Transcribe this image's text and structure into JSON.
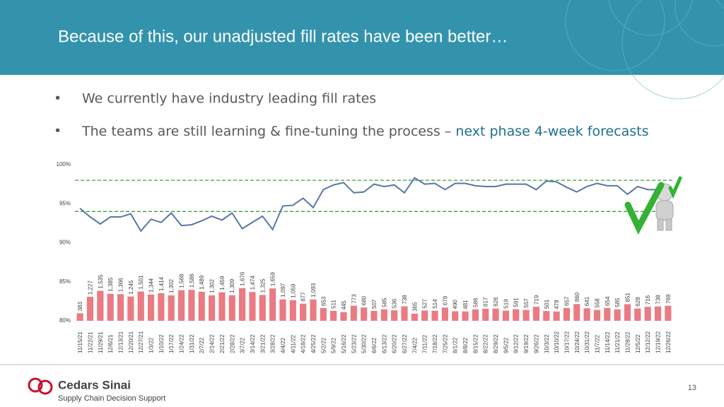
{
  "header": {
    "title": "Because of this, our unadjusted fill rates have been better…"
  },
  "bullets": [
    {
      "text": "We currently have industry leading fill rates"
    },
    {
      "text": "The teams are still learning & fine-tuning the process –",
      "highlight": "next phase 4-week forecasts"
    }
  ],
  "footer": {
    "logo": "Cedars Sinai",
    "department": "Supply Chain Decision Support",
    "page_number": "13"
  },
  "chart_data": {
    "type": "combo",
    "categories": [
      "11/15/21",
      "11/22/21",
      "11/29/21",
      "12/6/21",
      "12/13/21",
      "12/20/21",
      "12/27/21",
      "1/3/22",
      "1/10/22",
      "1/17/22",
      "1/24/22",
      "1/31/22",
      "2/7/22",
      "2/14/22",
      "2/21/22",
      "2/28/22",
      "3/7/22",
      "3/14/22",
      "3/21/22",
      "3/28/22",
      "4/4/22",
      "4/11/22",
      "4/18/22",
      "4/25/22",
      "5/2/22",
      "5/9/22",
      "5/16/22",
      "5/23/22",
      "5/30/22",
      "6/6/22",
      "6/13/22",
      "6/20/22",
      "6/27/22",
      "7/4/22",
      "7/11/22",
      "7/18/22",
      "7/25/22",
      "8/1/22",
      "8/8/22",
      "8/15/22",
      "8/22/22",
      "8/29/22",
      "9/5/22",
      "9/12/22",
      "9/19/22",
      "9/26/22",
      "10/3/22",
      "10/10/22",
      "10/17/22",
      "10/24/22",
      "10/31/22",
      "11/7/22",
      "11/14/22",
      "11/21/22",
      "11/28/22",
      "12/5/22",
      "12/12/22",
      "12/19/22",
      "12/26/22"
    ],
    "series": [
      {
        "type": "bar",
        "axis": "y2",
        "color": "#ea7b83",
        "values": [
          383,
          1227,
          1535,
          1385,
          1366,
          1245,
          1501,
          1344,
          1414,
          1302,
          1568,
          1586,
          1489,
          1302,
          1459,
          1309,
          1676,
          1474,
          1325,
          1659,
          1097,
          1059,
          877,
          1093,
          653,
          511,
          445,
          773,
          680,
          507,
          585,
          536,
          738,
          365,
          527,
          514,
          679,
          490,
          481,
          586,
          617,
          626,
          519,
          591,
          557,
          719,
          501,
          478,
          657,
          860,
          641,
          558,
          654,
          585,
          851,
          628,
          716,
          738,
          769
        ],
        "value_labels": [
          "383",
          "1,227",
          "1,535",
          "1,385",
          "1,366",
          "1,245",
          "1,501",
          "1,344",
          "1,414",
          "1,302",
          "1,568",
          "1,586",
          "1,489",
          "1,302",
          "1,459",
          "1,309",
          "1,676",
          "1,474",
          "1,325",
          "1,659",
          "1,097",
          "1,059",
          "877",
          "1,093",
          "653",
          "511",
          "445",
          "773",
          "680",
          "507",
          "585",
          "536",
          "738",
          "365",
          "527",
          "514",
          "679",
          "490",
          "481",
          "586",
          "617",
          "626",
          "519",
          "591",
          "557",
          "719",
          "501",
          "478",
          "657",
          "860",
          "641",
          "558",
          "654",
          "585",
          "851",
          "628",
          "716",
          "738",
          "769"
        ]
      },
      {
        "type": "line",
        "color": "#5677a8",
        "values": [
          94.4,
          93.3,
          92.4,
          93.3,
          93.3,
          93.7,
          91.5,
          93.0,
          92.6,
          93.8,
          92.2,
          92.3,
          92.8,
          93.4,
          92.9,
          93.8,
          91.8,
          92.6,
          93.4,
          91.7,
          94.7,
          94.8,
          95.7,
          94.5,
          96.8,
          97.4,
          97.7,
          96.4,
          96.5,
          97.5,
          97.2,
          97.4,
          96.4,
          98.3,
          97.5,
          97.6,
          96.8,
          97.6,
          97.6,
          97.3,
          97.2,
          97.2,
          97.5,
          97.5,
          97.5,
          96.8,
          97.9,
          97.8,
          97.1,
          96.5,
          97.2,
          97.6,
          97.3,
          97.3,
          96.2,
          97.2,
          96.8,
          96.8,
          97.1
        ]
      }
    ],
    "ylim": [
      80,
      100
    ],
    "yticks": [
      {
        "value": 80,
        "label": "80%"
      },
      {
        "value": 85,
        "label": "85%"
      },
      {
        "value": 90,
        "label": "90%"
      },
      {
        "value": 95,
        "label": "95%"
      },
      {
        "value": 100,
        "label": "100%"
      }
    ],
    "y2lim": [
      0,
      8000
    ],
    "reference_lines": [
      98,
      94
    ],
    "reference_line_color": "#3aa13a",
    "grid": false
  }
}
